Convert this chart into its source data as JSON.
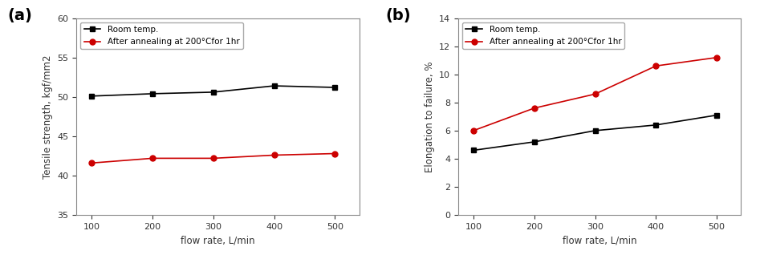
{
  "flowrate": [
    100,
    200,
    300,
    400,
    500
  ],
  "tensile_room": [
    50.1,
    50.4,
    50.6,
    51.4,
    51.2
  ],
  "tensile_anneal": [
    41.6,
    42.2,
    42.2,
    42.6,
    42.8
  ],
  "elongation_room": [
    4.6,
    5.2,
    6.0,
    6.4,
    7.1
  ],
  "elongation_anneal": [
    6.0,
    7.6,
    8.6,
    10.6,
    11.2
  ],
  "label_room": "Room temp.",
  "label_anneal": "After annealing at 200°Cfor 1hr",
  "color_room": "#000000",
  "color_anneal": "#cc0000",
  "xlabel": "flow rate, L/min",
  "ylabel_a": "Tensile strength, kgf/mm2",
  "ylabel_b": "Elongation to failure, %",
  "xlim": [
    75,
    540
  ],
  "ylim_a": [
    35,
    60
  ],
  "ylim_b": [
    0,
    14
  ],
  "xticks": [
    100,
    200,
    300,
    400,
    500
  ],
  "yticks_a": [
    35,
    40,
    45,
    50,
    55,
    60
  ],
  "yticks_b": [
    0,
    2,
    4,
    6,
    8,
    10,
    12,
    14
  ],
  "panel_a_label": "(a)",
  "panel_b_label": "(b)",
  "marker_room": "s",
  "marker_anneal": "o",
  "linewidth": 1.2,
  "markersize": 5,
  "bg_color": "#ffffff"
}
